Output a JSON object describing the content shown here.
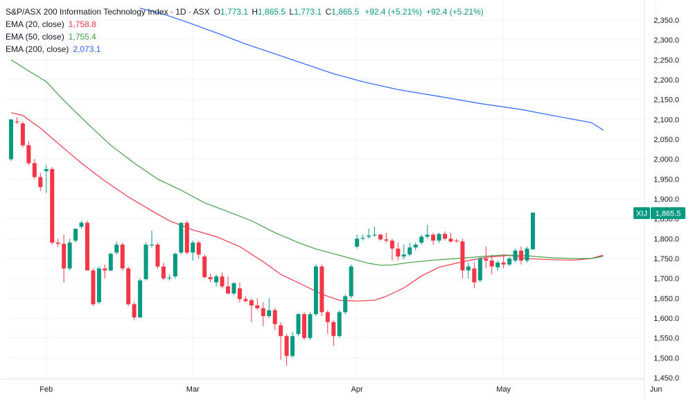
{
  "header": {
    "title": "S&P/ASX 200 Information Technology Index · 1D · ASX",
    "ohlc": [
      {
        "key": "O",
        "value": "1,773.1"
      },
      {
        "key": "H",
        "value": "1,865.5"
      },
      {
        "key": "L",
        "value": "1,773.1"
      },
      {
        "key": "C",
        "value": "1,865.5"
      }
    ],
    "change": "+92.4 (+5.21%)",
    "change2": "+92.4 (+5.21%)"
  },
  "indicators": [
    {
      "label": "EMA (20, close)",
      "value": "1,758.8",
      "color": "#f23645"
    },
    {
      "label": "EMA (50, close)",
      "value": "1,755.4",
      "color": "#43a047"
    },
    {
      "label": "EMA (200, close)",
      "value": "2,073.1",
      "color": "#2962ff"
    }
  ],
  "price_badge": {
    "symbol": "XIJ",
    "value": "1,865.5",
    "color": "#089981"
  },
  "colors": {
    "up": "#089981",
    "down": "#f23645",
    "grid": "#f0f3fa",
    "axis_text": "#131722"
  },
  "chart_data": {
    "type": "candlestick",
    "ylim": [
      1450,
      2375
    ],
    "y_ticks": [
      1450,
      1500,
      1550,
      1600,
      1650,
      1700,
      1750,
      1800,
      1850,
      1900,
      1950,
      2000,
      2050,
      2100,
      2150,
      2200,
      2250,
      2300,
      2350
    ],
    "y_tick_labels": [
      "1,450.0",
      "1,500.0",
      "1,550.0",
      "1,600.0",
      "1,650.0",
      "1,700.0",
      "1,750.0",
      "1,800.0",
      "1,850.0",
      "1,900.0",
      "1,950.0",
      "2,000.0",
      "2,050.0",
      "2,100.0",
      "2,150.0",
      "2,200.0",
      "2,250.0",
      "2,300.0",
      "2,350.0"
    ],
    "x_labels": [
      {
        "label": "Feb",
        "index": 6
      },
      {
        "label": "Mar",
        "index": 31
      },
      {
        "label": "Apr",
        "index": 59
      },
      {
        "label": "May",
        "index": 84
      },
      {
        "label": "Jun",
        "index": 110
      }
    ],
    "candles": [
      {
        "o": 2000,
        "h": 2100,
        "l": 1995,
        "c": 2100
      },
      {
        "o": 2095,
        "h": 2105,
        "l": 2088,
        "c": 2093
      },
      {
        "o": 2090,
        "h": 2095,
        "l": 2030,
        "c": 2035
      },
      {
        "o": 2035,
        "h": 2045,
        "l": 1985,
        "c": 1990
      },
      {
        "o": 1990,
        "h": 2000,
        "l": 1950,
        "c": 1955
      },
      {
        "o": 1955,
        "h": 1965,
        "l": 1920,
        "c": 1930
      },
      {
        "o": 1970,
        "h": 1985,
        "l": 1915,
        "c": 1975
      },
      {
        "o": 1975,
        "h": 1980,
        "l": 1785,
        "c": 1790
      },
      {
        "o": 1790,
        "h": 1800,
        "l": 1780,
        "c": 1787
      },
      {
        "o": 1787,
        "h": 1810,
        "l": 1690,
        "c": 1725
      },
      {
        "o": 1725,
        "h": 1800,
        "l": 1720,
        "c": 1790
      },
      {
        "o": 1795,
        "h": 1825,
        "l": 1790,
        "c": 1825
      },
      {
        "o": 1830,
        "h": 1845,
        "l": 1825,
        "c": 1840
      },
      {
        "o": 1840,
        "h": 1845,
        "l": 1720,
        "c": 1720
      },
      {
        "o": 1720,
        "h": 1725,
        "l": 1630,
        "c": 1635
      },
      {
        "o": 1640,
        "h": 1730,
        "l": 1635,
        "c": 1725
      },
      {
        "o": 1725,
        "h": 1735,
        "l": 1700,
        "c": 1720
      },
      {
        "o": 1720,
        "h": 1765,
        "l": 1718,
        "c": 1762
      },
      {
        "o": 1765,
        "h": 1792,
        "l": 1760,
        "c": 1785
      },
      {
        "o": 1785,
        "h": 1790,
        "l": 1720,
        "c": 1725
      },
      {
        "o": 1725,
        "h": 1730,
        "l": 1630,
        "c": 1635
      },
      {
        "o": 1635,
        "h": 1640,
        "l": 1595,
        "c": 1602
      },
      {
        "o": 1602,
        "h": 1700,
        "l": 1600,
        "c": 1695
      },
      {
        "o": 1698,
        "h": 1790,
        "l": 1695,
        "c": 1785
      },
      {
        "o": 1785,
        "h": 1820,
        "l": 1778,
        "c": 1785
      },
      {
        "o": 1785,
        "h": 1790,
        "l": 1725,
        "c": 1730
      },
      {
        "o": 1730,
        "h": 1740,
        "l": 1695,
        "c": 1700
      },
      {
        "o": 1700,
        "h": 1710,
        "l": 1695,
        "c": 1702
      },
      {
        "o": 1705,
        "h": 1765,
        "l": 1700,
        "c": 1762
      },
      {
        "o": 1765,
        "h": 1840,
        "l": 1760,
        "c": 1840
      },
      {
        "o": 1840,
        "h": 1845,
        "l": 1760,
        "c": 1765
      },
      {
        "o": 1765,
        "h": 1795,
        "l": 1745,
        "c": 1790
      },
      {
        "o": 1790,
        "h": 1795,
        "l": 1750,
        "c": 1760
      },
      {
        "o": 1755,
        "h": 1760,
        "l": 1700,
        "c": 1703
      },
      {
        "o": 1703,
        "h": 1712,
        "l": 1690,
        "c": 1698
      },
      {
        "o": 1690,
        "h": 1710,
        "l": 1680,
        "c": 1705
      },
      {
        "o": 1705,
        "h": 1715,
        "l": 1675,
        "c": 1680
      },
      {
        "o": 1680,
        "h": 1705,
        "l": 1660,
        "c": 1662
      },
      {
        "o": 1662,
        "h": 1690,
        "l": 1658,
        "c": 1688
      },
      {
        "o": 1675,
        "h": 1690,
        "l": 1640,
        "c": 1648
      },
      {
        "o": 1648,
        "h": 1655,
        "l": 1640,
        "c": 1643
      },
      {
        "o": 1645,
        "h": 1650,
        "l": 1590,
        "c": 1632
      },
      {
        "o": 1632,
        "h": 1650,
        "l": 1620,
        "c": 1625
      },
      {
        "o": 1625,
        "h": 1640,
        "l": 1580,
        "c": 1605
      },
      {
        "o": 1605,
        "h": 1650,
        "l": 1600,
        "c": 1620
      },
      {
        "o": 1620,
        "h": 1625,
        "l": 1570,
        "c": 1585
      },
      {
        "o": 1582,
        "h": 1590,
        "l": 1495,
        "c": 1555
      },
      {
        "o": 1555,
        "h": 1560,
        "l": 1480,
        "c": 1505
      },
      {
        "o": 1505,
        "h": 1565,
        "l": 1500,
        "c": 1555
      },
      {
        "o": 1560,
        "h": 1612,
        "l": 1555,
        "c": 1610
      },
      {
        "o": 1610,
        "h": 1615,
        "l": 1545,
        "c": 1550
      },
      {
        "o": 1550,
        "h": 1615,
        "l": 1545,
        "c": 1610
      },
      {
        "o": 1610,
        "h": 1735,
        "l": 1605,
        "c": 1730
      },
      {
        "o": 1730,
        "h": 1735,
        "l": 1605,
        "c": 1615
      },
      {
        "o": 1615,
        "h": 1620,
        "l": 1560,
        "c": 1590
      },
      {
        "o": 1590,
        "h": 1595,
        "l": 1530,
        "c": 1555
      },
      {
        "o": 1555,
        "h": 1620,
        "l": 1550,
        "c": 1615
      },
      {
        "o": 1615,
        "h": 1660,
        "l": 1610,
        "c": 1655
      },
      {
        "o": 1655,
        "h": 1735,
        "l": 1650,
        "c": 1730
      },
      {
        "o": 1780,
        "h": 1810,
        "l": 1775,
        "c": 1800
      },
      {
        "o": 1800,
        "h": 1810,
        "l": 1795,
        "c": 1802
      },
      {
        "o": 1805,
        "h": 1825,
        "l": 1800,
        "c": 1808
      },
      {
        "o": 1808,
        "h": 1830,
        "l": 1805,
        "c": 1810
      },
      {
        "o": 1810,
        "h": 1812,
        "l": 1795,
        "c": 1798
      },
      {
        "o": 1798,
        "h": 1815,
        "l": 1790,
        "c": 1795
      },
      {
        "o": 1795,
        "h": 1800,
        "l": 1745,
        "c": 1775
      },
      {
        "o": 1775,
        "h": 1790,
        "l": 1745,
        "c": 1755
      },
      {
        "o": 1755,
        "h": 1785,
        "l": 1748,
        "c": 1760
      },
      {
        "o": 1760,
        "h": 1790,
        "l": 1755,
        "c": 1778
      },
      {
        "o": 1778,
        "h": 1790,
        "l": 1770,
        "c": 1785
      },
      {
        "o": 1790,
        "h": 1810,
        "l": 1785,
        "c": 1805
      },
      {
        "o": 1805,
        "h": 1835,
        "l": 1800,
        "c": 1810
      },
      {
        "o": 1810,
        "h": 1815,
        "l": 1785,
        "c": 1795
      },
      {
        "o": 1795,
        "h": 1815,
        "l": 1790,
        "c": 1812
      },
      {
        "o": 1812,
        "h": 1818,
        "l": 1795,
        "c": 1800
      },
      {
        "o": 1800,
        "h": 1815,
        "l": 1790,
        "c": 1793
      },
      {
        "o": 1795,
        "h": 1800,
        "l": 1790,
        "c": 1793
      },
      {
        "o": 1793,
        "h": 1800,
        "l": 1700,
        "c": 1720
      },
      {
        "o": 1720,
        "h": 1740,
        "l": 1700,
        "c": 1730
      },
      {
        "o": 1725,
        "h": 1740,
        "l": 1675,
        "c": 1690
      },
      {
        "o": 1695,
        "h": 1755,
        "l": 1690,
        "c": 1750
      },
      {
        "o": 1750,
        "h": 1780,
        "l": 1725,
        "c": 1745
      },
      {
        "o": 1745,
        "h": 1760,
        "l": 1710,
        "c": 1730
      },
      {
        "o": 1728,
        "h": 1745,
        "l": 1720,
        "c": 1740
      },
      {
        "o": 1740,
        "h": 1760,
        "l": 1725,
        "c": 1735
      },
      {
        "o": 1735,
        "h": 1755,
        "l": 1730,
        "c": 1750
      },
      {
        "o": 1745,
        "h": 1775,
        "l": 1740,
        "c": 1770
      },
      {
        "o": 1770,
        "h": 1780,
        "l": 1735,
        "c": 1745
      },
      {
        "o": 1745,
        "h": 1780,
        "l": 1740,
        "c": 1775
      },
      {
        "o": 1773.1,
        "h": 1865.5,
        "l": 1773.1,
        "c": 1865.5
      }
    ],
    "series": [
      {
        "name": "EMA (20, close)",
        "color": "#f23645",
        "points": [
          [
            0,
            2117
          ],
          [
            2,
            2110
          ],
          [
            5,
            2078
          ],
          [
            8,
            2040
          ],
          [
            12,
            1990
          ],
          [
            16,
            1945
          ],
          [
            20,
            1905
          ],
          [
            24,
            1870
          ],
          [
            27,
            1845
          ],
          [
            31,
            1822
          ],
          [
            35,
            1805
          ],
          [
            39,
            1780
          ],
          [
            43,
            1742
          ],
          [
            46,
            1710
          ],
          [
            50,
            1682
          ],
          [
            53,
            1660
          ],
          [
            56,
            1645
          ],
          [
            59,
            1643
          ],
          [
            62,
            1645
          ],
          [
            64,
            1655
          ],
          [
            67,
            1676
          ],
          [
            70,
            1706
          ],
          [
            73,
            1728
          ],
          [
            77,
            1742
          ],
          [
            81,
            1753
          ],
          [
            85,
            1758
          ],
          [
            88,
            1750
          ],
          [
            92,
            1747
          ],
          [
            96,
            1746
          ],
          [
            99,
            1750
          ],
          [
            101,
            1758.8
          ]
        ]
      },
      {
        "name": "EMA (50, close)",
        "color": "#43a047",
        "points": [
          [
            0,
            2250
          ],
          [
            3,
            2222
          ],
          [
            6,
            2195
          ],
          [
            9,
            2148
          ],
          [
            13,
            2090
          ],
          [
            17,
            2035
          ],
          [
            21,
            1990
          ],
          [
            25,
            1950
          ],
          [
            29,
            1922
          ],
          [
            33,
            1890
          ],
          [
            37,
            1868
          ],
          [
            41,
            1845
          ],
          [
            45,
            1815
          ],
          [
            49,
            1790
          ],
          [
            52,
            1774
          ],
          [
            55,
            1762
          ],
          [
            58,
            1750
          ],
          [
            61,
            1738
          ],
          [
            63,
            1733
          ],
          [
            65,
            1734
          ],
          [
            68,
            1740
          ],
          [
            72,
            1746
          ],
          [
            77,
            1751
          ],
          [
            81,
            1756
          ],
          [
            84,
            1759
          ],
          [
            88,
            1757
          ],
          [
            92,
            1752
          ],
          [
            96,
            1750
          ],
          [
            99,
            1750
          ],
          [
            101,
            1755.4
          ]
        ]
      },
      {
        "name": "EMA (200, close)",
        "color": "#2962ff",
        "points": [
          [
            22,
            2380
          ],
          [
            26,
            2365
          ],
          [
            30,
            2345
          ],
          [
            35,
            2318
          ],
          [
            40,
            2290
          ],
          [
            45,
            2265
          ],
          [
            50,
            2240
          ],
          [
            55,
            2215
          ],
          [
            60,
            2195
          ],
          [
            66,
            2175
          ],
          [
            73,
            2158
          ],
          [
            80,
            2140
          ],
          [
            87,
            2125
          ],
          [
            93,
            2108
          ],
          [
            99,
            2092
          ],
          [
            101,
            2073.1
          ]
        ]
      }
    ]
  }
}
